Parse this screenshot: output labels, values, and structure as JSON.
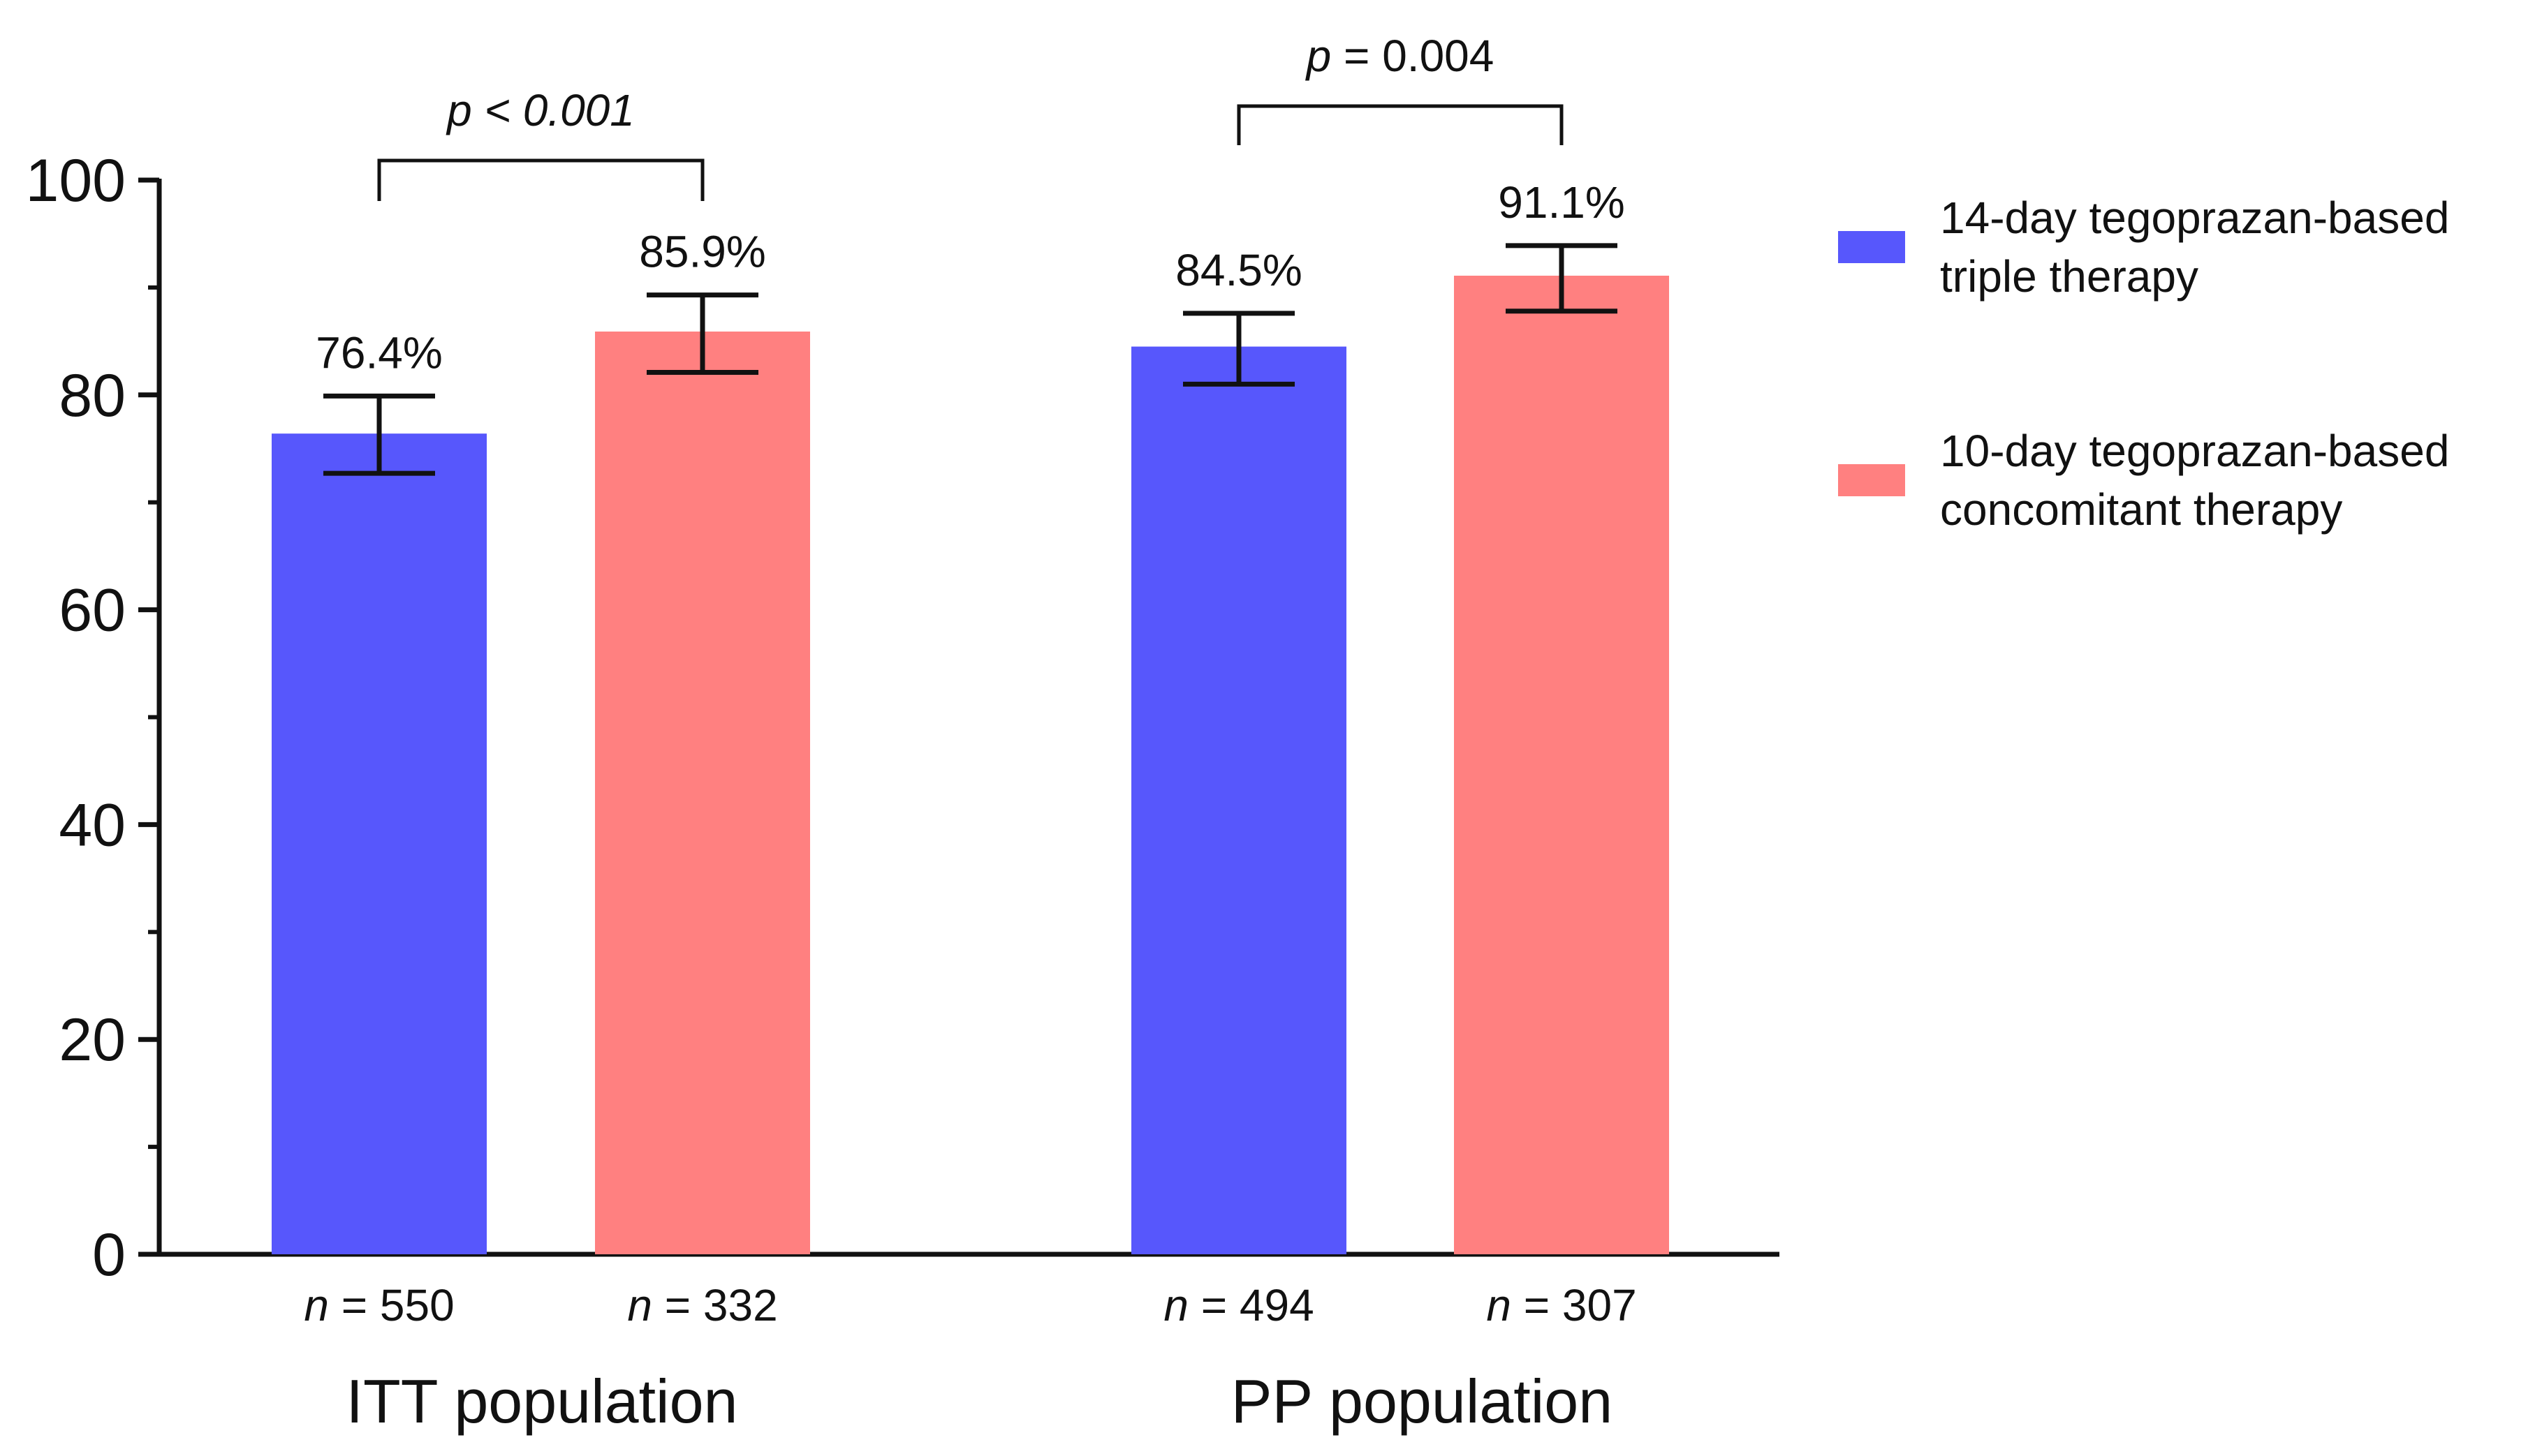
{
  "chart_data": {
    "type": "bar",
    "title": "",
    "xlabel": "",
    "ylabel": "",
    "ylim": [
      0,
      100
    ],
    "yticks": [
      0,
      20,
      40,
      60,
      80,
      100
    ],
    "grid": false,
    "legend_position": "top-right",
    "groups": [
      {
        "name": "ITT population",
        "bars": [
          {
            "series": "14-day tegoprazan-based triple therapy",
            "value": 76.4,
            "value_label": "76.4%",
            "ci": [
              72.7,
              79.9
            ],
            "n_label": "n",
            "n_value": "= 550"
          },
          {
            "series": "10-day tegoprazan-based concomitant therapy",
            "value": 85.9,
            "value_label": "85.9%",
            "ci": [
              82.1,
              89.3
            ],
            "n_label": "n",
            "n_value": "= 332"
          }
        ],
        "p_value": {
          "symbol": "p",
          "text": "< 0.001"
        }
      },
      {
        "name": "PP population",
        "bars": [
          {
            "series": "14-day tegoprazan-based triple therapy",
            "value": 84.5,
            "value_label": "84.5%",
            "ci": [
              81.0,
              87.6
            ],
            "n_label": "n",
            "n_value": "= 494"
          },
          {
            "series": "10-day tegoprazan-based concomitant therapy",
            "value": 91.1,
            "value_label": "91.1%",
            "ci": [
              87.8,
              93.9
            ],
            "n_label": "n",
            "n_value": "= 307"
          }
        ],
        "p_value": {
          "symbol": "p",
          "text": "= 0.004"
        }
      }
    ],
    "series": [
      {
        "name": "14-day tegoprazan-based triple therapy",
        "legend_lines": [
          "14-day tegoprazan-based",
          "triple therapy"
        ],
        "color": "#5757FC"
      },
      {
        "name": "10-day tegoprazan-based concomitant therapy",
        "legend_lines": [
          "10-day tegoprazan-based",
          "concomitant therapy"
        ],
        "color": "#FF8080"
      }
    ]
  }
}
